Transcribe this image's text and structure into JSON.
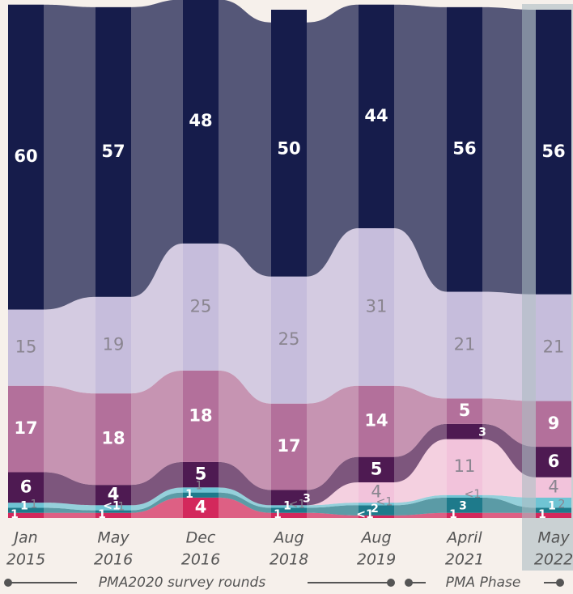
{
  "chart_data": {
    "type": "stacked-flow-bar",
    "categories": [
      [
        "Jan",
        "2015"
      ],
      [
        "May",
        "2016"
      ],
      [
        "Dec",
        "2016"
      ],
      [
        "Aug",
        "2018"
      ],
      [
        "Aug",
        "2019"
      ],
      [
        "April",
        "2021"
      ],
      [
        "May",
        "2022"
      ]
    ],
    "ylim": [
      0,
      100
    ],
    "series": [
      {
        "color": "#d3285c",
        "values": [
          1,
          1,
          4,
          1,
          0.5,
          1,
          1
        ],
        "value_labels": [
          "1",
          "1",
          "4",
          "1",
          "<1",
          "1",
          "1"
        ]
      },
      {
        "color": "#1e7a8b",
        "values": [
          1,
          0.5,
          1,
          1,
          2,
          3,
          1
        ],
        "value_labels": [
          "1",
          "<1",
          "1",
          "1",
          "2",
          "3",
          "1"
        ]
      },
      {
        "color": "#6fc4d4",
        "values": [
          1,
          1,
          1,
          0.5,
          0.5,
          0.5,
          2
        ],
        "value_labels": [
          "1",
          "1",
          "1",
          "<1",
          "<1",
          "<1",
          "2"
        ]
      },
      {
        "color": "#f2c3db",
        "values": [
          null,
          null,
          null,
          null,
          4,
          11,
          4
        ]
      },
      {
        "color": "#4e1a52",
        "values": [
          6,
          4,
          5,
          3,
          5,
          3,
          6
        ]
      },
      {
        "color": "#b3709b",
        "values": [
          17,
          18,
          18,
          17,
          14,
          5,
          9
        ]
      },
      {
        "color": "#c6bddc",
        "values": [
          15,
          19,
          25,
          25,
          31,
          21,
          21
        ]
      },
      {
        "color": "#161c4b",
        "values": [
          60,
          57,
          48,
          50,
          44,
          56,
          56
        ]
      }
    ],
    "footer": {
      "left": "PMA2020 survey rounds",
      "right": "PMA Phase"
    }
  }
}
